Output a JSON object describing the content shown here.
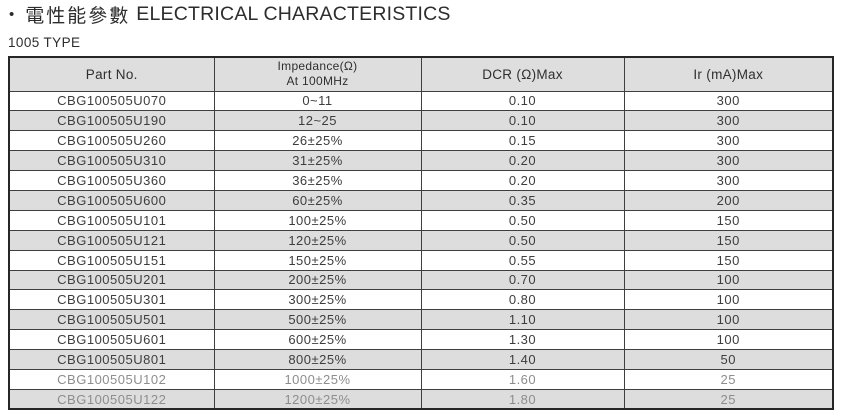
{
  "header": {
    "bullet": "•",
    "title_zh": "電性能參數",
    "title_en": "ELECTRICAL CHARACTERISTICS",
    "type_label": "1005 TYPE"
  },
  "table": {
    "headers": {
      "part_no": "Part No.",
      "impedance_line1": "Impedance(Ω)",
      "impedance_line2": "At 100MHz",
      "dcr": "DCR (Ω)Max",
      "ir": "Ir (mA)Max"
    },
    "rows": [
      {
        "part_no": "CBG100505U070",
        "impedance": "0~11",
        "dcr": "0.10",
        "ir": "300"
      },
      {
        "part_no": "CBG100505U190",
        "impedance": "12~25",
        "dcr": "0.10",
        "ir": "300"
      },
      {
        "part_no": "CBG100505U260",
        "impedance": "26±25%",
        "dcr": "0.15",
        "ir": "300"
      },
      {
        "part_no": "CBG100505U310",
        "impedance": "31±25%",
        "dcr": "0.20",
        "ir": "300"
      },
      {
        "part_no": "CBG100505U360",
        "impedance": "36±25%",
        "dcr": "0.20",
        "ir": "300"
      },
      {
        "part_no": "CBG100505U600",
        "impedance": "60±25%",
        "dcr": "0.35",
        "ir": "200"
      },
      {
        "part_no": "CBG100505U101",
        "impedance": "100±25%",
        "dcr": "0.50",
        "ir": "150"
      },
      {
        "part_no": "CBG100505U121",
        "impedance": "120±25%",
        "dcr": "0.50",
        "ir": "150"
      },
      {
        "part_no": "CBG100505U151",
        "impedance": "150±25%",
        "dcr": "0.55",
        "ir": "150"
      },
      {
        "part_no": "CBG100505U201",
        "impedance": "200±25%",
        "dcr": "0.70",
        "ir": "100"
      },
      {
        "part_no": "CBG100505U301",
        "impedance": "300±25%",
        "dcr": "0.80",
        "ir": "100"
      },
      {
        "part_no": "CBG100505U501",
        "impedance": "500±25%",
        "dcr": "1.10",
        "ir": "100"
      },
      {
        "part_no": "CBG100505U601",
        "impedance": "600±25%",
        "dcr": "1.30",
        "ir": "100"
      },
      {
        "part_no": "CBG100505U801",
        "impedance": "800±25%",
        "dcr": "1.40",
        "ir": "50"
      },
      {
        "part_no": "CBG100505U102",
        "impedance": "1000±25%",
        "dcr": "1.60",
        "ir": "25",
        "dim": true
      },
      {
        "part_no": "CBG100505U122",
        "impedance": "1200±25%",
        "dcr": "1.80",
        "ir": "25",
        "dim": true
      }
    ],
    "colors": {
      "header_bg": "#dedede",
      "shaded_row_bg": "#dddddd",
      "border": "#3f3f3f",
      "outer_border": "#262626",
      "text": "#3d3d3d",
      "dim_text": "#8d8d8d"
    }
  }
}
